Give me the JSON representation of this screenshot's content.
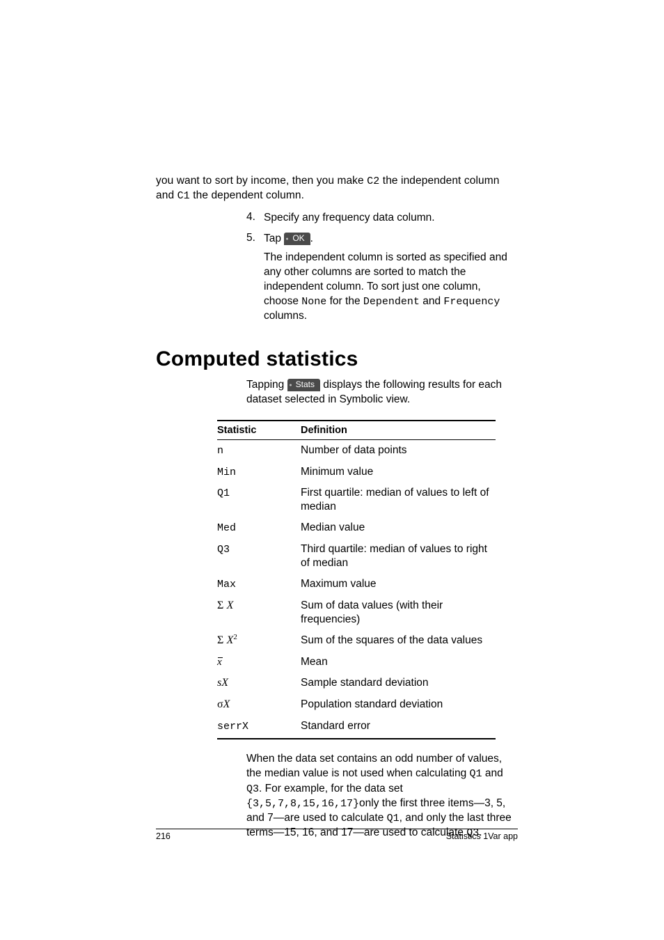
{
  "intro": {
    "line1_a": "you want to sort by income, then you make ",
    "line1_code": "C2",
    "line1_b": " the independent column and ",
    "line1_code2": "C1",
    "line1_c": " the dependent column."
  },
  "steps": {
    "s4": {
      "num": "4.",
      "text": "Specify any frequency data column."
    },
    "s5": {
      "num": "5.",
      "pre": "Tap ",
      "btn": "OK",
      "post": ".",
      "follow_a": "The independent column is sorted as specified and any other columns are sorted to match the independent column. To sort just one column, choose ",
      "code_none": "None",
      "mid1": " for the ",
      "code_dep": "Dependent",
      "mid2": " and ",
      "code_freq": "Frequency",
      "tail": " columns."
    }
  },
  "section_title": "Computed statistics",
  "lead": {
    "pre": "Tapping ",
    "btn": "Stats",
    "post": " displays the following results for each dataset selected in Symbolic view."
  },
  "table": {
    "head_stat": "Statistic",
    "head_def": "Definition",
    "rows": [
      {
        "stat_html": "<span class='mono'>n</span>",
        "def": "Number of data points"
      },
      {
        "stat_html": "<span class='mono'>Min</span>",
        "def": "Minimum value"
      },
      {
        "stat_html": "<span class='mono'>Q1</span>",
        "def": "First quartile: median of values to left of median"
      },
      {
        "stat_html": "<span class='mono'>Med</span>",
        "def": "Median value"
      },
      {
        "stat_html": "<span class='mono'>Q3</span>",
        "def": "Third quartile: median of values to right of median"
      },
      {
        "stat_html": "<span class='mono'>Max</span>",
        "def": "Maximum value"
      },
      {
        "stat_html": "<span class='greek'>Σ</span> <span class='serif-it'>X</span>",
        "def": "Sum of data values (with their frequencies)"
      },
      {
        "stat_html": "<span class='greek'>Σ</span> <span class='serif-it'>X</span><span class='sup'>2</span>",
        "def": "Sum of the squares of the data values"
      },
      {
        "stat_html": "<span class='xbar'>x</span>",
        "def": "Mean"
      },
      {
        "stat_html": "<span class='serif-it'>sX</span>",
        "def": "Sample standard deviation"
      },
      {
        "stat_html": "<span class='greek'>σ</span><span class='serif-it'>X</span>",
        "def": "Population standard deviation"
      },
      {
        "stat_html": "<span class='mono'>serrX</span>",
        "def": "Standard error"
      }
    ]
  },
  "after": {
    "a": "When the data set contains an odd number of values, the median value is not used when calculating ",
    "q1": "Q1",
    "b": " and ",
    "q3": "Q3",
    "c": ". For example, for the data set ",
    "set": "{3,5,7,8,15,16,17}",
    "d": "only the first three items—3, 5, and 7—are used to calculate ",
    "q1b": "Q1",
    "e": ", and only the last three terms—15, 16, and 17—are used to calculate ",
    "q3b": "Q3",
    "f": "."
  },
  "footer": {
    "page": "216",
    "title": "Statistics 1Var app"
  }
}
